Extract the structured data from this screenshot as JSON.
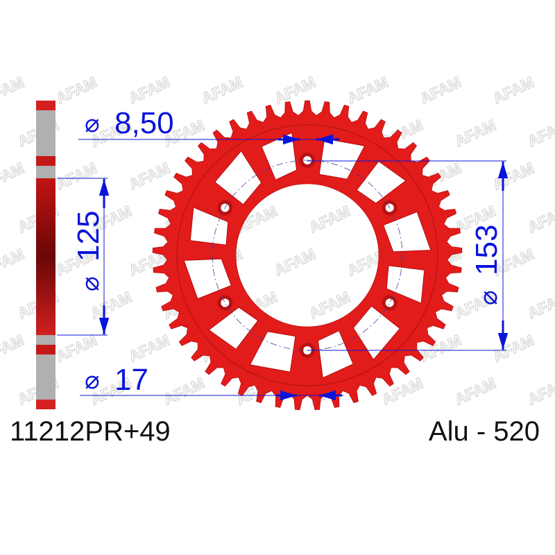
{
  "product": {
    "part_number": "11212PR+49",
    "material_pitch": "Alu - 520",
    "teeth": 49
  },
  "dimensions": {
    "bolt_hole": "8,50",
    "pcd": "125",
    "center_bore": "153",
    "thickness": "17",
    "diameter_symbol": "⌀"
  },
  "watermark": "AFAM",
  "colors": {
    "sprocket": "#e21b1b",
    "dimension": "#0a14d8",
    "watermark": "#d8d8d8"
  }
}
